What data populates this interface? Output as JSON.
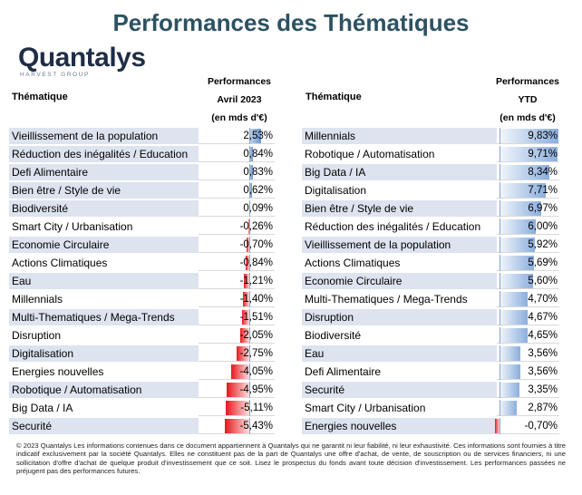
{
  "title": "Performances des Thématiques",
  "logo": {
    "name": "Quantalys",
    "subtitle": "HARVEST GROUP"
  },
  "footer": "© 2023 Quantalys Les informations contenues dans ce document appartiennent à Quantalys qui ne garantit ni leur fiabilité, ni leur exhaustivité. Ces informations sont fournies à titre indicatif exclusivement par la société Quantalys. Elles ne constituent pas de la part de Quantalys une offre d'achat, de vente, de souscription ou de services financiers, ni une sollicitation d'offre d'achat de quelque produit d'investissement que ce soit. Lisez le prospectus du fonds avant toute décision d'investissement. Les performances passées ne préjugent pas des performances futures.",
  "chart_data": [
    {
      "type": "bar",
      "theme_header": "Thématique",
      "value_header": [
        "Performances",
        "Avril 2023",
        "(en mds d'€)"
      ],
      "categories": [
        "Vieillissement de la population",
        "Réduction des inégalités / Education",
        "Defi Alimentaire",
        "Bien être / Style de vie",
        "Biodiversité",
        "Smart City / Urbanisation",
        "Economie Circulaire",
        "Actions Climatiques",
        "Eau",
        "Millennials",
        "Multi-Thematiques / Mega-Trends",
        "Disruption",
        "Digitalisation",
        "Energies nouvelles",
        "Robotique / Automatisation",
        "Big Data / IA",
        "Securité"
      ],
      "values": [
        2.53,
        0.84,
        0.83,
        0.62,
        0.09,
        -0.26,
        -0.7,
        -0.84,
        -1.21,
        -1.4,
        -1.51,
        -2.05,
        -2.75,
        -4.05,
        -4.95,
        -5.11,
        -5.43
      ],
      "labels": [
        "2,53%",
        "0,84%",
        "0,83%",
        "0,62%",
        "0,09%",
        "-0,26%",
        "-0,70%",
        "-0,84%",
        "-1,21%",
        "-1,40%",
        "-1,51%",
        "-2,05%",
        "-2,75%",
        "-4,05%",
        "-4,95%",
        "-5,11%",
        "-5,43%"
      ]
    },
    {
      "type": "bar",
      "theme_header": "Thématique",
      "value_header": [
        "Performances",
        "YTD",
        "(en mds d'€)"
      ],
      "categories": [
        "Millennials",
        "Robotique / Automatisation",
        "Big Data / IA",
        "Digitalisation",
        "Bien être / Style de vie",
        "Réduction des inégalités / Education",
        "Vieillissement de la population",
        "Actions Climatiques",
        "Economie Circulaire",
        "Multi-Thematiques / Mega-Trends",
        "Disruption",
        "Biodiversité",
        "Eau",
        "Defi Alimentaire",
        "Securité",
        "Smart City / Urbanisation",
        "Energies nouvelles"
      ],
      "values": [
        9.83,
        9.71,
        8.34,
        7.71,
        6.97,
        6.0,
        5.92,
        5.69,
        5.6,
        4.7,
        4.67,
        4.65,
        3.56,
        3.56,
        3.35,
        2.87,
        -0.7
      ],
      "labels": [
        "9,83%",
        "9,71%",
        "8,34%",
        "7,71%",
        "6,97%",
        "6,00%",
        "5,92%",
        "5,69%",
        "5,60%",
        "4,70%",
        "4,67%",
        "4,65%",
        "3,56%",
        "3,56%",
        "3,35%",
        "2,87%",
        "-0,70%"
      ]
    }
  ]
}
